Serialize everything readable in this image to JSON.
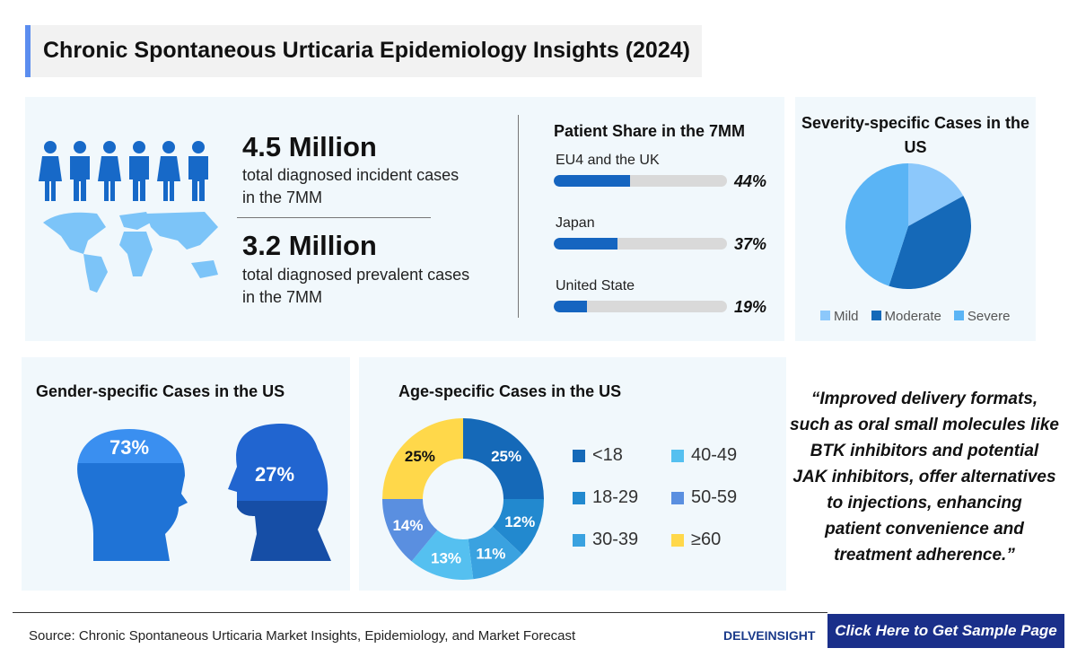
{
  "title": "Chronic Spontaneous Urticaria Epidemiology Insights (2024)",
  "stats": [
    {
      "value": "4.5 Million",
      "desc1": "total diagnosed incident cases",
      "desc2": "in the 7MM"
    },
    {
      "value": "3.2 Million",
      "desc1": "total diagnosed prevalent cases",
      "desc2": "in the 7MM"
    }
  ],
  "patient_share": {
    "title": "Patient Share in the 7MM",
    "items": [
      {
        "label": "EU4 and the UK",
        "value": 44,
        "text": "44%"
      },
      {
        "label": "Japan",
        "value": 37,
        "text": "37%"
      },
      {
        "label": "United State",
        "value": 19,
        "text": "19%"
      }
    ]
  },
  "chart_data": [
    {
      "type": "pie",
      "title": "Severity-specific Cases in the US",
      "categories": [
        "Mild",
        "Moderate",
        "Severe"
      ],
      "values": [
        17,
        38,
        45
      ],
      "colors": [
        "#8cc8fb",
        "#1569b8",
        "#5ab4f5"
      ],
      "legend": "bottom"
    },
    {
      "type": "pie",
      "title": "Gender-specific Cases in the US",
      "categories": [
        "Female",
        "Male"
      ],
      "values": [
        73,
        27
      ],
      "labels": [
        "73%",
        "27%"
      ]
    },
    {
      "type": "donut",
      "title": "Age-specific Cases in the US",
      "categories": [
        "<18",
        "18-29",
        "30-39",
        "40-49",
        "50-59",
        "≥60"
      ],
      "values": [
        25,
        12,
        11,
        13,
        14,
        25
      ],
      "labels": [
        "25%",
        "12%",
        "11%",
        "13%",
        "14%",
        "25%"
      ],
      "colors": [
        "#1569b8",
        "#2289cf",
        "#3aa2e0",
        "#55c0f0",
        "#5a8fe0",
        "#ffd84a"
      ],
      "legend": "right"
    }
  ],
  "quote": [
    "“Improved delivery formats,",
    "such as oral small molecules like",
    "BTK inhibitors and potential",
    "JAK inhibitors, offer alternatives",
    "to injections, enhancing",
    "patient convenience and",
    "treatment adherence.”"
  ],
  "footer": {
    "source": "Source: Chronic Spontaneous Urticaria Market Insights, Epidemiology, and Market Forecast",
    "logo": "DELVEINSIGHT",
    "cta": "Click Here to Get Sample Page"
  }
}
